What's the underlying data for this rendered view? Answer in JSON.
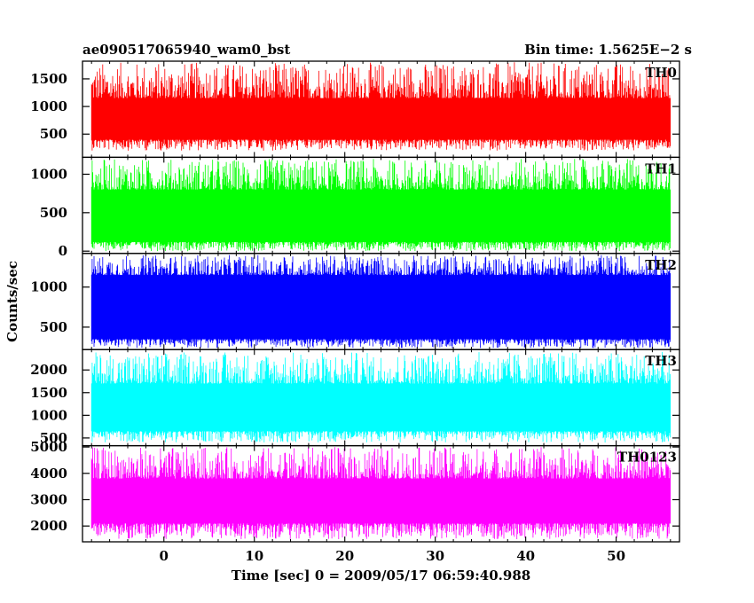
{
  "header": {
    "left_title": "ae090517065940_wam0_bst",
    "right_title": "Bin time: 1.5625E−2 s"
  },
  "chart_data": {
    "type": "line",
    "xlabel": "Time [sec] 0 = 2009/05/17 06:59:40.988",
    "ylabel": "Counts/sec",
    "xlim": [
      -9,
      57
    ],
    "x_ticks": [
      0,
      10,
      20,
      30,
      40,
      50
    ],
    "x_range_data": [
      -8,
      56
    ],
    "grid": false,
    "panels": [
      {
        "name": "TH0",
        "color": "#ff0000",
        "ylim": [
          80,
          1820
        ],
        "y_ticks": [
          500,
          1000,
          1500
        ],
        "band_low": 400,
        "band_high": 1150,
        "min_approx": 200,
        "max_approx": 1800
      },
      {
        "name": "TH1",
        "color": "#00ff00",
        "ylim": [
          -30,
          1220
        ],
        "y_ticks": [
          0,
          500,
          1000
        ],
        "band_low": 120,
        "band_high": 800,
        "min_approx": 0,
        "max_approx": 1200
      },
      {
        "name": "TH2",
        "color": "#0000ff",
        "ylim": [
          220,
          1420
        ],
        "y_ticks": [
          500,
          1000
        ],
        "band_low": 350,
        "band_high": 1150,
        "min_approx": 240,
        "max_approx": 1400
      },
      {
        "name": "TH3",
        "color": "#00ffff",
        "ylim": [
          330,
          2450
        ],
        "y_ticks": [
          500,
          1000,
          1500,
          2000
        ],
        "band_low": 650,
        "band_high": 1700,
        "min_approx": 400,
        "max_approx": 2400
      },
      {
        "name": "TH0123",
        "color": "#ff00ff",
        "ylim": [
          1400,
          5050
        ],
        "y_ticks": [
          2000,
          3000,
          4000,
          5000
        ],
        "band_low": 2100,
        "band_high": 3800,
        "min_approx": 1500,
        "max_approx": 5000
      }
    ]
  }
}
